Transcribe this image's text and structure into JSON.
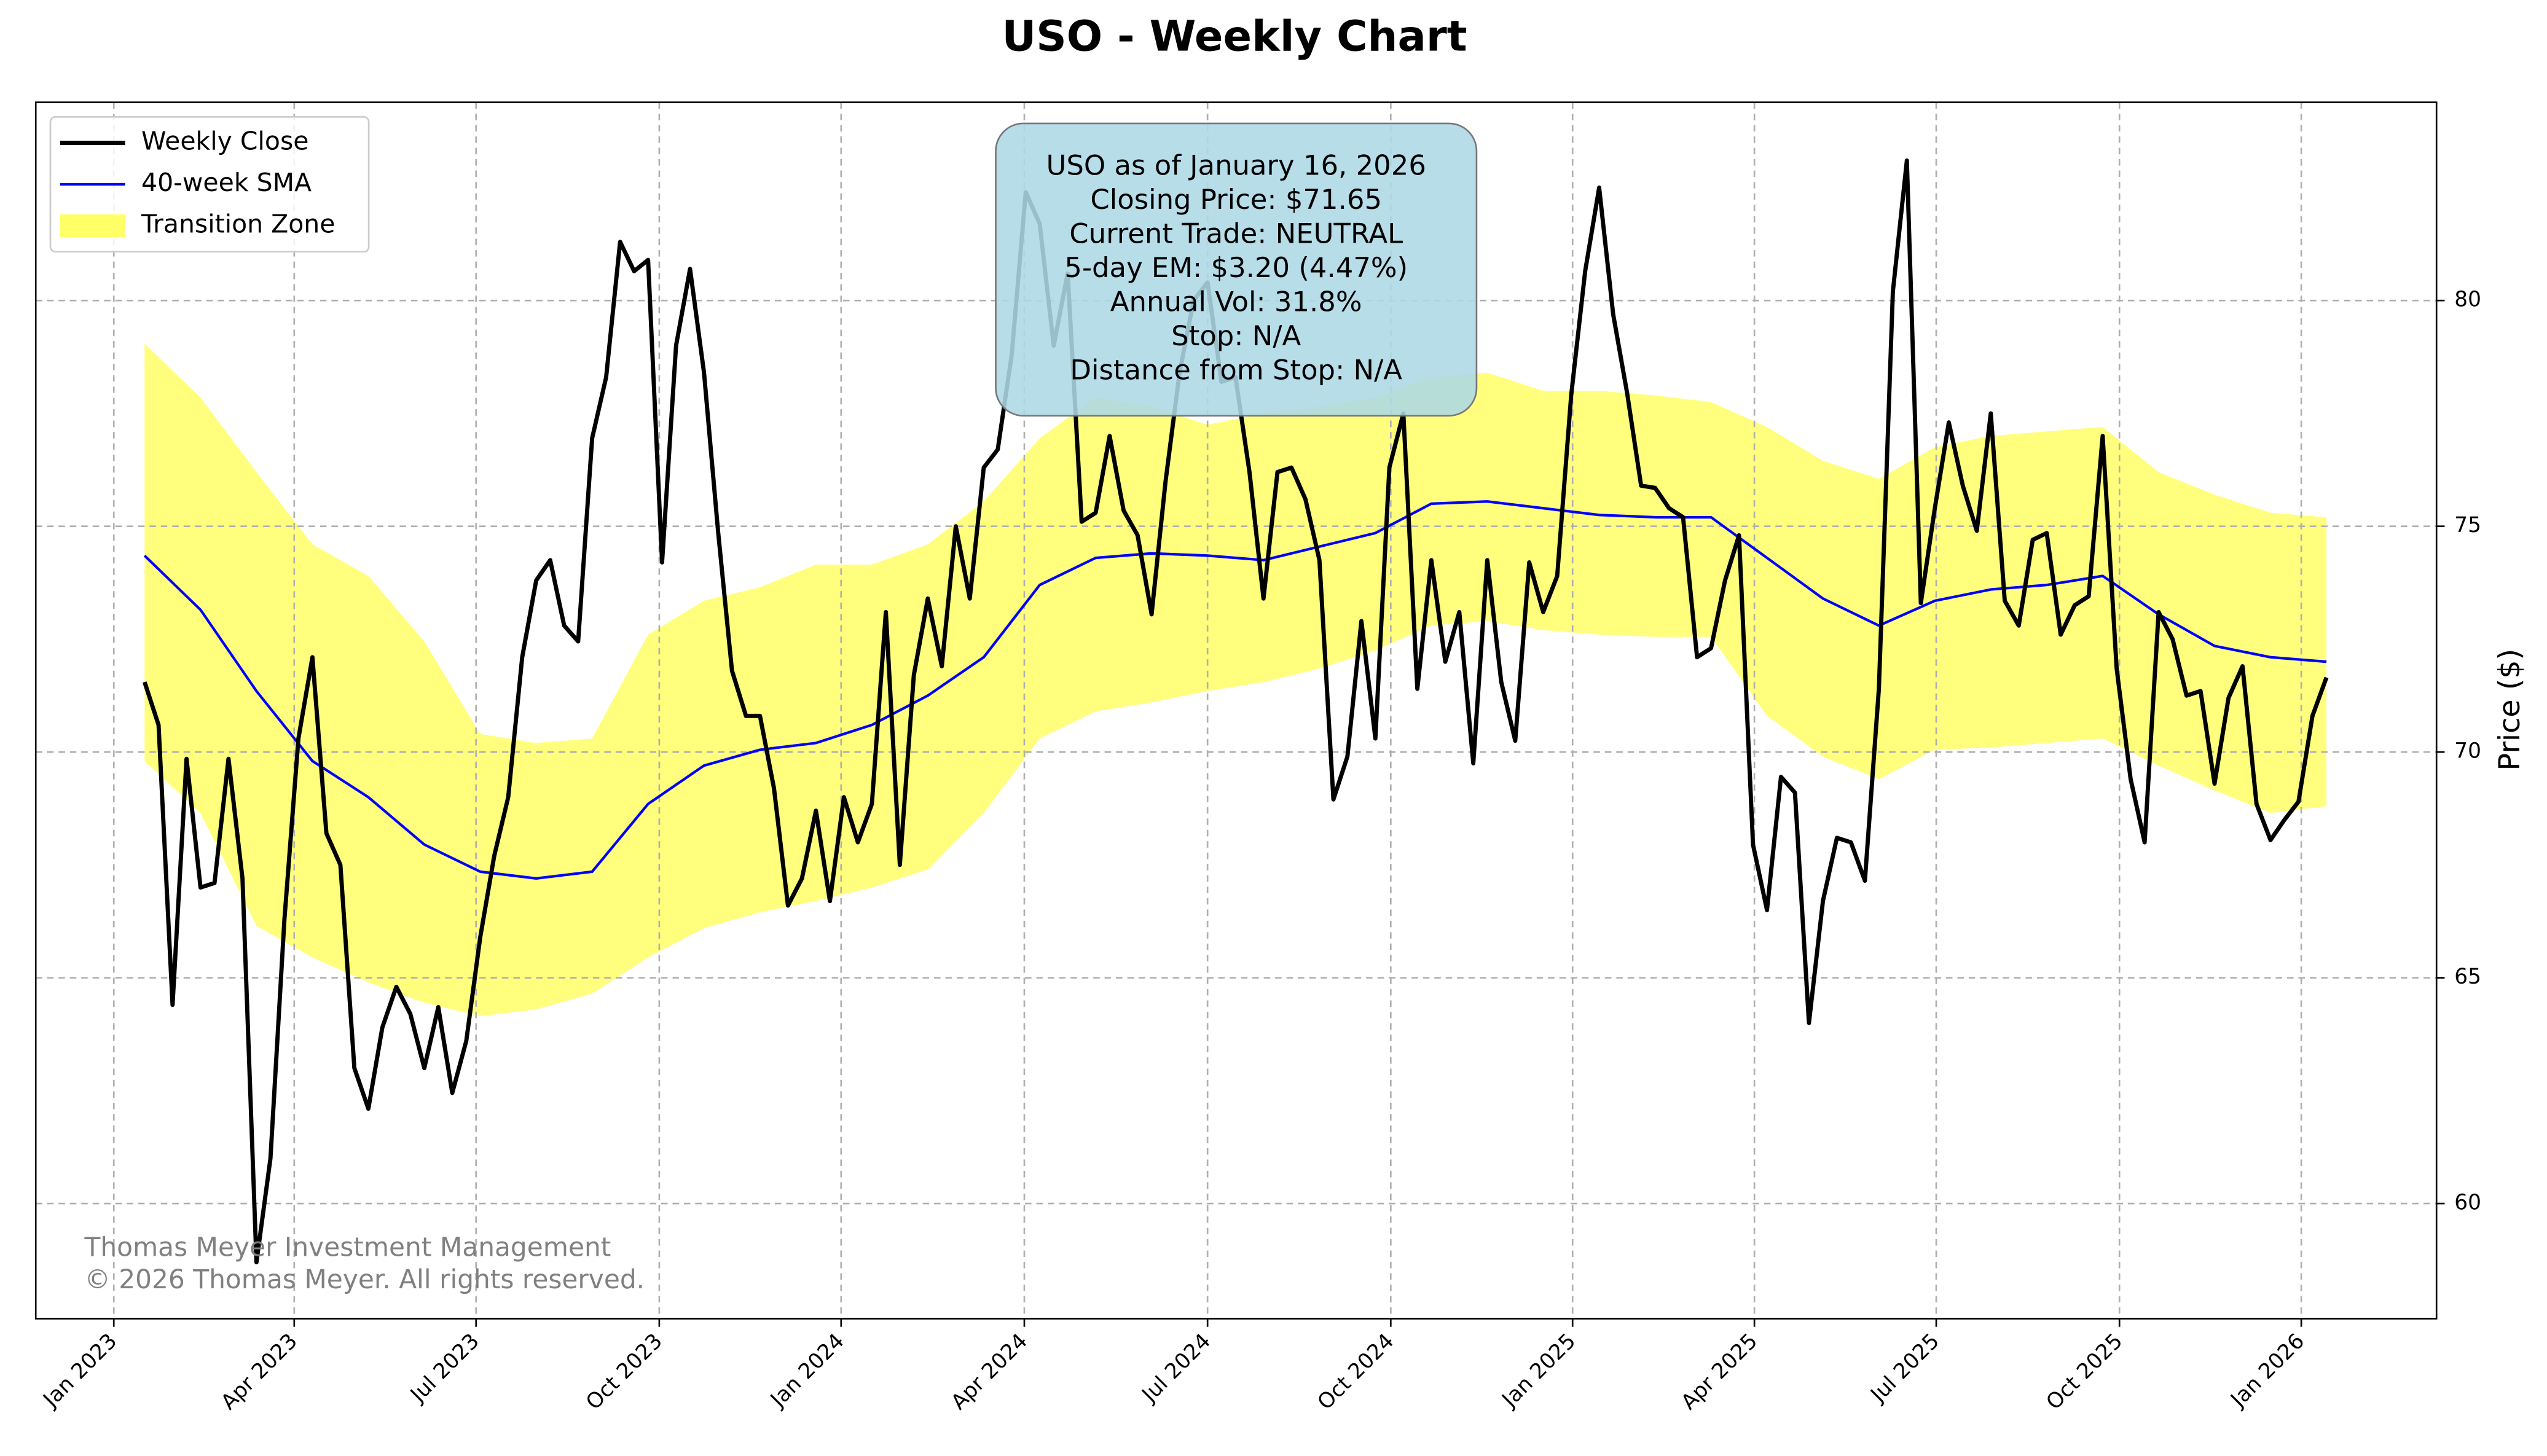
{
  "chart_data": {
    "type": "line",
    "title": "USO - Weekly Chart",
    "y_label": "Price ($)",
    "xlim": [
      -7.78,
      163.87
    ],
    "xticks": [
      {
        "value": -2.2,
        "label": "Jan 2023"
      },
      {
        "value": 10.7,
        "label": "Apr 2023"
      },
      {
        "value": 23.7,
        "label": "Jul 2023"
      },
      {
        "value": 36.8,
        "label": "Oct 2023"
      },
      {
        "value": 49.8,
        "label": "Jan 2024"
      },
      {
        "value": 62.9,
        "label": "Apr 2024"
      },
      {
        "value": 76.0,
        "label": "Jul 2024"
      },
      {
        "value": 89.1,
        "label": "Oct 2024"
      },
      {
        "value": 102.1,
        "label": "Jan 2025"
      },
      {
        "value": 115.1,
        "label": "Apr 2025"
      },
      {
        "value": 128.1,
        "label": "Jul 2025"
      },
      {
        "value": 141.2,
        "label": "Oct 2025"
      },
      {
        "value": 154.2,
        "label": "Jan 2026"
      }
    ],
    "ylim": [
      57.45,
      84.39
    ],
    "yticks": [
      60,
      65,
      70,
      75,
      80
    ],
    "grid": true,
    "legend": "upper left",
    "series": [
      {
        "name": "Weekly Close",
        "color": "#000000",
        "values": [
          71.55,
          70.6,
          64.4,
          69.85,
          67.0,
          67.1,
          69.85,
          67.2,
          58.7,
          61.0,
          66.3,
          70.3,
          72.1,
          68.2,
          67.5,
          63.0,
          62.1,
          63.9,
          64.8,
          64.2,
          63.0,
          64.35,
          62.45,
          63.6,
          65.9,
          67.7,
          69.0,
          72.1,
          73.8,
          74.25,
          72.8,
          72.45,
          76.95,
          78.3,
          81.3,
          80.65,
          80.9,
          74.2,
          79.0,
          80.7,
          78.4,
          74.9,
          71.8,
          70.8,
          70.8,
          69.2,
          66.6,
          67.2,
          68.7,
          66.7,
          69.0,
          68.0,
          68.85,
          73.1,
          67.5,
          71.7,
          73.4,
          71.9,
          75.0,
          73.4,
          76.3,
          76.7,
          78.8,
          82.4,
          81.7,
          79.0,
          80.6,
          75.1,
          75.3,
          77.0,
          75.35,
          74.8,
          73.05,
          76.0,
          78.4,
          80.0,
          80.4,
          78.2,
          78.3,
          76.2,
          73.4,
          76.2,
          76.3,
          75.6,
          74.25,
          68.95,
          69.9,
          72.9,
          70.3,
          76.3,
          77.5,
          71.4,
          74.25,
          72.0,
          73.1,
          69.75,
          74.25,
          71.55,
          70.25,
          74.2,
          73.1,
          73.9,
          77.9,
          80.65,
          82.5,
          79.7,
          77.95,
          75.9,
          75.85,
          75.4,
          75.2,
          72.1,
          72.3,
          73.8,
          74.8,
          67.95,
          66.5,
          69.45,
          69.1,
          64.0,
          66.7,
          68.1,
          68.0,
          67.15,
          71.4,
          80.2,
          83.1,
          73.3,
          75.4,
          77.3,
          75.9,
          74.9,
          77.5,
          73.35,
          72.8,
          74.7,
          74.85,
          72.6,
          73.25,
          73.45,
          77.0,
          71.85,
          69.4,
          68.0,
          73.1,
          72.5,
          71.25,
          71.35,
          69.3,
          71.2,
          71.9,
          68.85,
          68.05,
          68.5,
          68.9,
          70.8,
          71.65
        ]
      },
      {
        "name": "40-week SMA",
        "color": "#0000ff",
        "x": [
          0,
          4,
          8,
          12,
          16,
          20,
          24,
          28,
          32,
          36,
          40,
          44,
          48,
          52,
          56,
          60,
          64,
          68,
          72,
          76,
          80,
          84,
          88,
          92,
          96,
          100,
          104,
          108,
          112,
          116,
          120,
          124,
          128,
          132,
          136,
          140,
          144,
          148,
          152,
          156
        ],
        "values": [
          74.35,
          73.15,
          71.35,
          69.8,
          69.0,
          67.95,
          67.35,
          67.2,
          67.35,
          68.85,
          69.7,
          70.05,
          70.2,
          70.6,
          71.25,
          72.1,
          73.7,
          74.3,
          74.4,
          74.35,
          74.25,
          74.55,
          74.85,
          75.5,
          75.55,
          75.4,
          75.25,
          75.2,
          75.2,
          74.3,
          73.4,
          72.8,
          73.35,
          73.6,
          73.7,
          73.9,
          73.05,
          72.35,
          72.1,
          72.0
        ]
      }
    ],
    "band": {
      "name": "Transition Zone",
      "color": "#ffff66",
      "x": [
        0,
        4,
        8,
        12,
        16,
        20,
        24,
        28,
        32,
        36,
        40,
        44,
        48,
        52,
        56,
        60,
        64,
        68,
        72,
        76,
        80,
        84,
        88,
        92,
        96,
        100,
        104,
        108,
        112,
        116,
        120,
        124,
        128,
        132,
        136,
        140,
        144,
        148,
        152,
        156
      ],
      "upper": [
        79.05,
        77.85,
        76.2,
        74.6,
        73.9,
        72.45,
        70.4,
        70.2,
        70.3,
        72.6,
        73.35,
        73.65,
        74.15,
        74.15,
        74.6,
        75.55,
        76.95,
        77.85,
        77.65,
        77.25,
        77.5,
        77.65,
        77.85,
        78.3,
        78.4,
        78.0,
        78.0,
        77.9,
        77.75,
        77.2,
        76.45,
        76.05,
        76.75,
        77.0,
        77.1,
        77.2,
        76.2,
        75.7,
        75.3,
        75.2
      ],
      "lower": [
        69.8,
        68.65,
        66.15,
        65.45,
        64.9,
        64.45,
        64.15,
        64.3,
        64.65,
        65.45,
        66.1,
        66.45,
        66.7,
        67.0,
        67.4,
        68.65,
        70.3,
        70.9,
        71.1,
        71.35,
        71.55,
        71.85,
        72.25,
        72.8,
        72.9,
        72.7,
        72.6,
        72.55,
        72.55,
        70.8,
        69.9,
        69.4,
        70.05,
        70.1,
        70.2,
        70.3,
        69.7,
        69.15,
        68.65,
        68.8
      ]
    },
    "info_box": [
      "USO as of January 16, 2026",
      "Closing Price: $71.65",
      "Current Trade: NEUTRAL",
      "5-day EM: $3.20 (4.47%)",
      "Annual Vol: 31.8%",
      "Stop: N/A",
      "Distance from Stop: N/A"
    ],
    "watermark": [
      "Thomas Meyer Investment Management",
      "© 2026 Thomas Meyer. All rights reserved."
    ]
  }
}
